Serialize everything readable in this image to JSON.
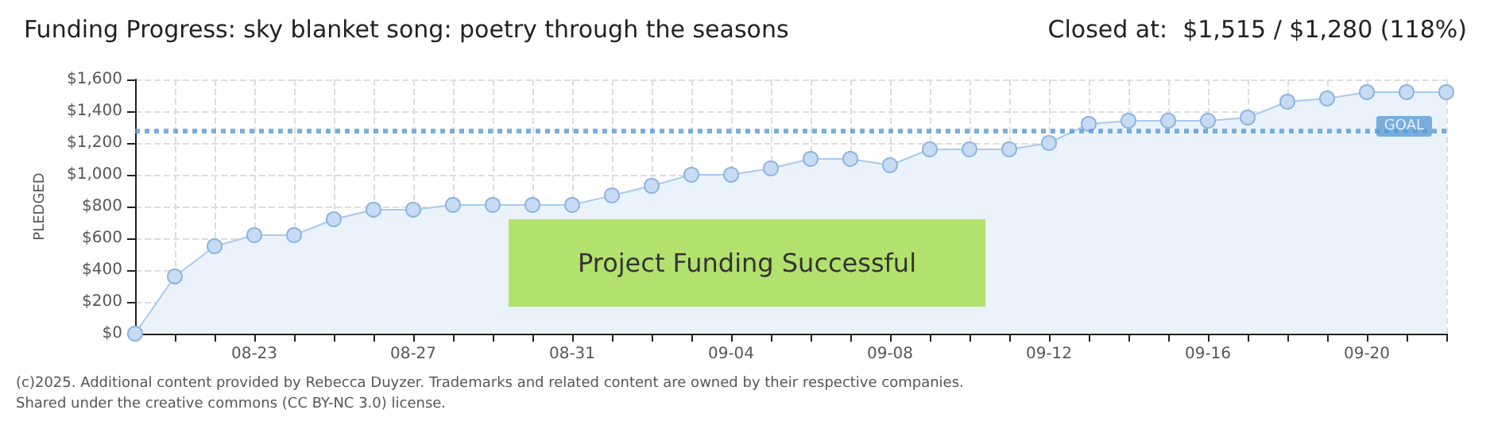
{
  "chart_data": {
    "type": "area",
    "title": "Funding Progress: sky blanket song: poetry through the seasons",
    "subtitle": "Closed at:  $1,515 / $1,280 (118%)",
    "ylabel": "PLEDGED",
    "categories": [
      null,
      null,
      null,
      "08-23",
      null,
      null,
      null,
      "08-27",
      null,
      null,
      null,
      "08-31",
      null,
      null,
      null,
      "09-04",
      null,
      null,
      null,
      "09-08",
      null,
      null,
      null,
      "09-12",
      null,
      null,
      null,
      "09-16",
      null,
      null,
      null,
      "09-20",
      null,
      null
    ],
    "series": [
      {
        "color": "#a9c9ee",
        "values": [
          0,
          360,
          550,
          620,
          620,
          720,
          780,
          780,
          810,
          810,
          810,
          810,
          870,
          930,
          1000,
          1000,
          1040,
          1100,
          1100,
          1060,
          1160,
          1160,
          1160,
          1200,
          1320,
          1340,
          1340,
          1340,
          1360,
          1460,
          1480,
          1520,
          1520,
          1520
        ]
      }
    ],
    "ylim": [
      0,
      1600
    ],
    "yticks": [
      {
        "value": 0,
        "label": "$0"
      },
      {
        "value": 200,
        "label": "$200"
      },
      {
        "value": 400,
        "label": "$400"
      },
      {
        "value": 600,
        "label": "$600"
      },
      {
        "value": 800,
        "label": "$800"
      },
      {
        "value": 1000,
        "label": "$1,000"
      },
      {
        "value": 1200,
        "label": "$1,200"
      },
      {
        "value": 1400,
        "label": "$1,400"
      },
      {
        "value": 1600,
        "label": "$1,600"
      }
    ],
    "ref_lines": [
      {
        "axis": "y",
        "value": 1280,
        "label": "GOAL",
        "color": "#5b9bd5",
        "line_style": "dotted"
      }
    ],
    "annotations": [
      "Project Funding Successful",
      "(c)2025. Additional content provided by Rebecca Duyzer. Trademarks and related content are owned by their respective companies.",
      "Shared under the creative commons (CC BY-NC 3.0) license."
    ],
    "grid": true,
    "marker": "circle",
    "line_style": "solid"
  }
}
